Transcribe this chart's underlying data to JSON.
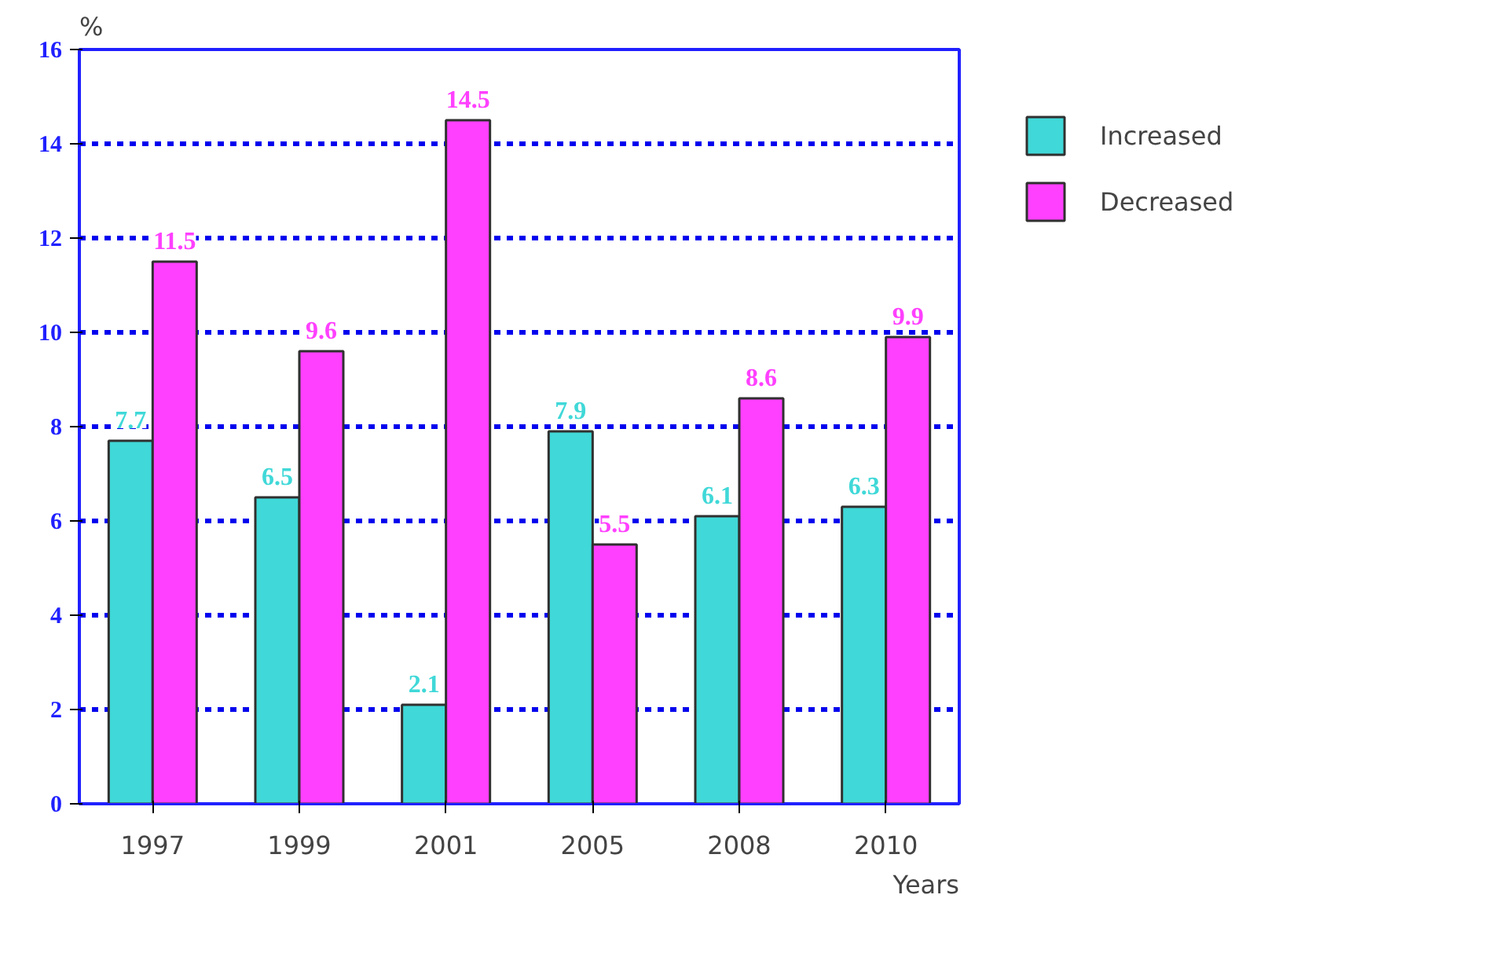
{
  "chart_data": {
    "type": "bar",
    "xlabel": "Years",
    "ylabel": "%",
    "categories": [
      "1997",
      "1999",
      "2001",
      "2005",
      "2008",
      "2010"
    ],
    "series": [
      {
        "name": "Increased",
        "color": "#40d8d8",
        "values": [
          7.7,
          6.5,
          2.1,
          7.9,
          6.1,
          6.3
        ]
      },
      {
        "name": "Decreased",
        "color": "#ff40ff",
        "values": [
          11.5,
          9.6,
          14.5,
          5.5,
          8.6,
          9.9
        ]
      }
    ],
    "ylim": [
      0,
      16
    ],
    "yticks": [
      0,
      2,
      4,
      6,
      8,
      10,
      12,
      14,
      16
    ],
    "grid": "y",
    "legend": "right",
    "data_labels": true
  }
}
